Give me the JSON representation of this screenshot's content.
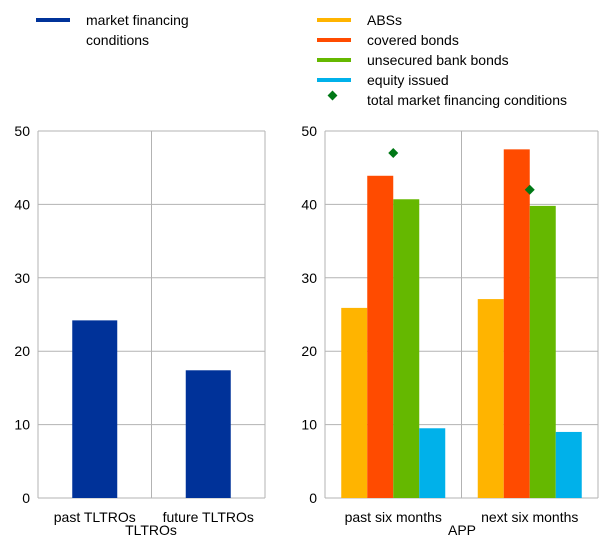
{
  "chart_data": [
    {
      "type": "bar",
      "title": "",
      "xlabel": "TLTROs",
      "ylabel": "",
      "ylim": [
        0,
        50
      ],
      "yticks": [
        0,
        10,
        20,
        30,
        40,
        50
      ],
      "grid": true,
      "legend_position": "top",
      "categories": [
        "past TLTROs",
        "future TLTROs"
      ],
      "series": [
        {
          "name": "market financing conditions",
          "color": "#003299",
          "values": [
            24.2,
            17.4
          ]
        }
      ]
    },
    {
      "type": "bar",
      "title": "",
      "xlabel": "APP",
      "ylabel": "",
      "ylim": [
        0,
        50
      ],
      "yticks": [
        0,
        10,
        20,
        30,
        40,
        50
      ],
      "grid": true,
      "legend_position": "top",
      "categories": [
        "past six months",
        "next six months"
      ],
      "series": [
        {
          "name": "ABSs",
          "color": "#FFB400",
          "values": [
            25.9,
            27.1
          ]
        },
        {
          "name": "covered bonds",
          "color": "#FF4B00",
          "values": [
            43.9,
            47.5
          ]
        },
        {
          "name": "unsecured bank bonds",
          "color": "#65B800",
          "values": [
            40.7,
            39.8
          ]
        },
        {
          "name": "equity issued",
          "color": "#00B1EA",
          "values": [
            9.5,
            9.0
          ]
        }
      ],
      "markers": [
        {
          "name": "total market financing conditions",
          "color": "#007816",
          "shape": "diamond",
          "values": [
            47.0,
            42.0
          ]
        }
      ]
    }
  ],
  "legend_left": {
    "label_line1": "market financing",
    "label_line2": "conditions",
    "color": "#003299"
  }
}
